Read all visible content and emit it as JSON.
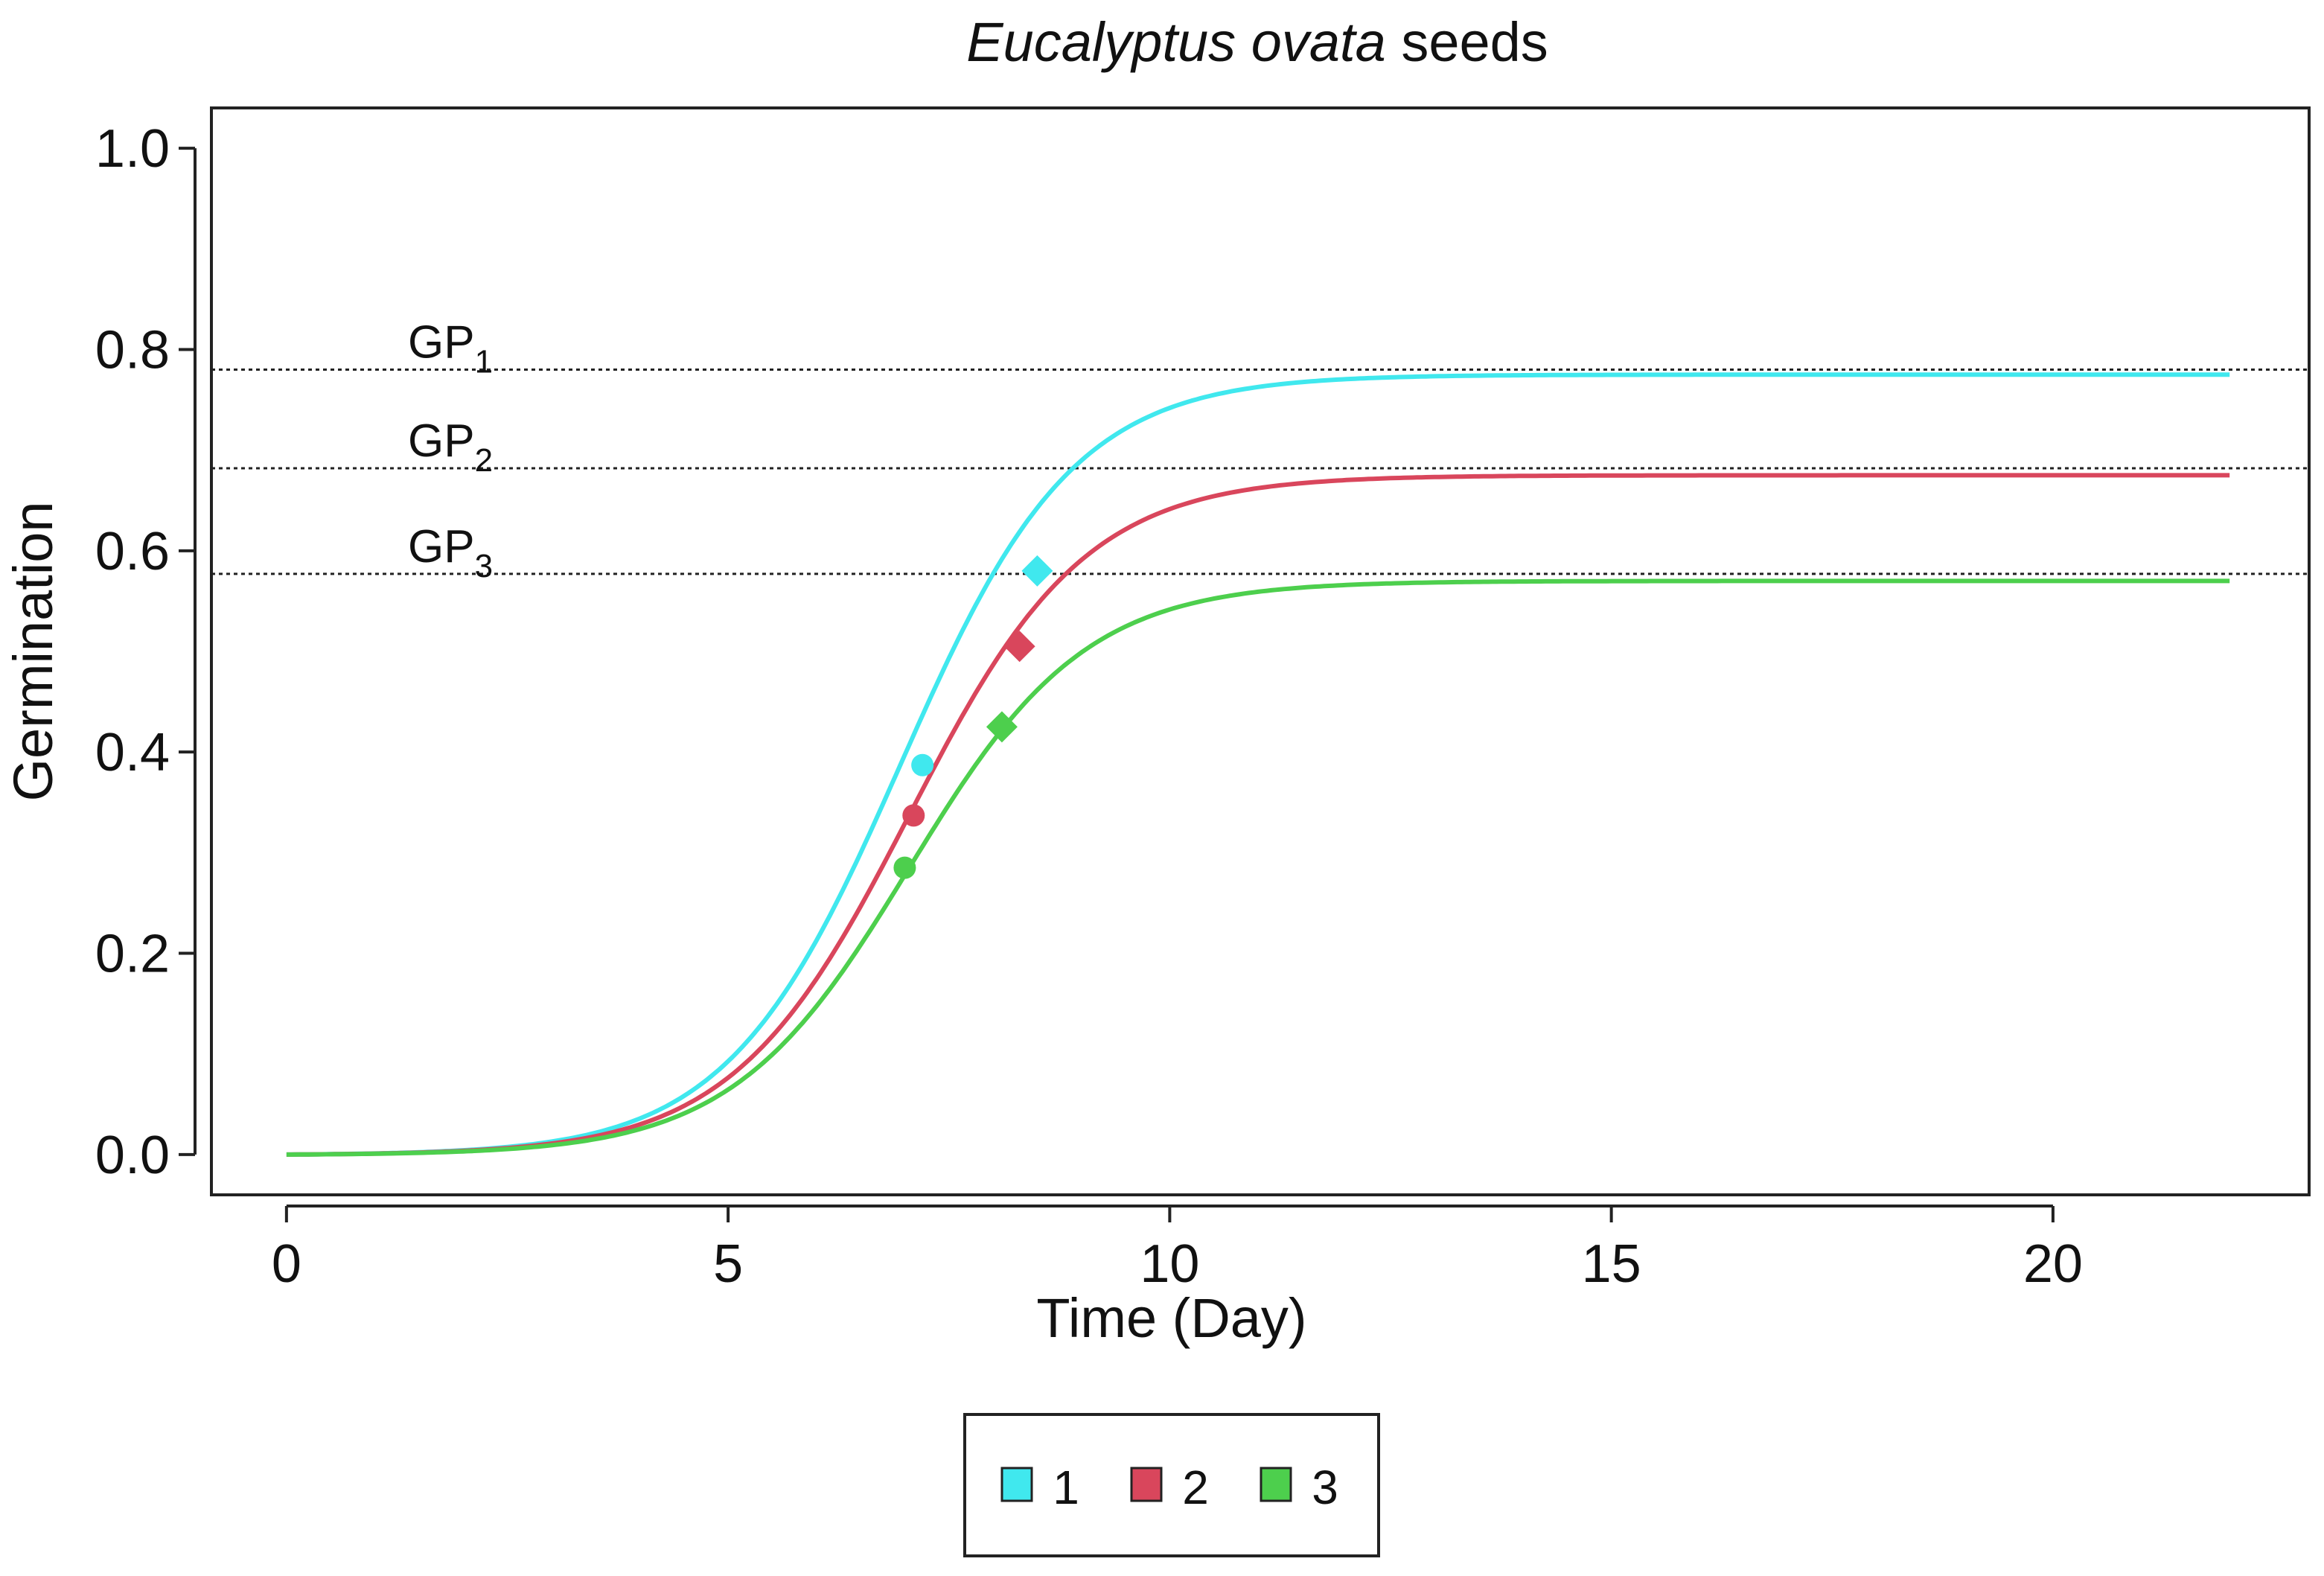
{
  "chart_data": {
    "type": "line",
    "title": {
      "italic": "Eucalyptus ovata",
      "rest": " seeds"
    },
    "xlabel": "Time (Day)",
    "ylabel": "Germination",
    "xlim": [
      -0.85,
      22.9
    ],
    "ylim": [
      -0.04,
      1.04
    ],
    "xticks": [
      0,
      5,
      10,
      15,
      20
    ],
    "yticks": [
      "0.0",
      "0.2",
      "0.4",
      "0.6",
      "0.8",
      "1.0"
    ],
    "grid": false,
    "legend_position": "bottom-center",
    "reference_lines": [
      {
        "y": 0.78,
        "label": "GP",
        "sub": "1"
      },
      {
        "y": 0.682,
        "label": "GP",
        "sub": "2"
      },
      {
        "y": 0.577,
        "label": "GP",
        "sub": "3"
      }
    ],
    "series": [
      {
        "name": "1",
        "color": "#40e8ee",
        "asymptote": 0.775,
        "t50": 6.95,
        "k": 1.02,
        "x_end": 22,
        "markers": [
          {
            "shape": "circle",
            "x": 7.2,
            "y": 0.387
          },
          {
            "shape": "diamond",
            "x": 8.5,
            "y": 0.58
          }
        ]
      },
      {
        "name": "2",
        "color": "#d9465c",
        "asymptote": 0.675,
        "t50": 7.05,
        "k": 1.0,
        "x_end": 22,
        "markers": [
          {
            "shape": "circle",
            "x": 7.1,
            "y": 0.337
          },
          {
            "shape": "diamond",
            "x": 8.3,
            "y": 0.505
          }
        ]
      },
      {
        "name": "3",
        "color": "#4dcf4d",
        "asymptote": 0.57,
        "t50": 7.05,
        "k": 1.0,
        "x_end": 22,
        "markers": [
          {
            "shape": "circle",
            "x": 7.0,
            "y": 0.285
          },
          {
            "shape": "diamond",
            "x": 8.1,
            "y": 0.425
          }
        ]
      }
    ]
  }
}
